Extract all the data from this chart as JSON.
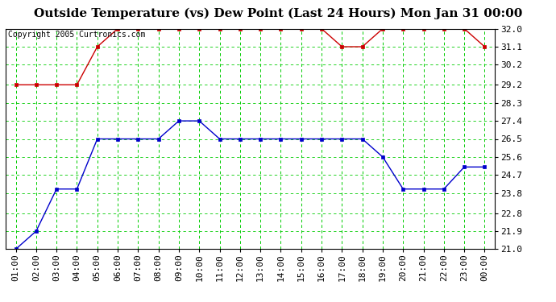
{
  "title": "Outside Temperature (vs) Dew Point (Last 24 Hours) Mon Jan 31 00:00",
  "copyright": "Copyright 2005 Curtronics.com",
  "x_labels": [
    "01:00",
    "02:00",
    "03:00",
    "04:00",
    "05:00",
    "06:00",
    "07:00",
    "08:00",
    "09:00",
    "10:00",
    "11:00",
    "12:00",
    "13:00",
    "14:00",
    "15:00",
    "16:00",
    "17:00",
    "18:00",
    "19:00",
    "20:00",
    "21:00",
    "22:00",
    "23:00",
    "00:00"
  ],
  "y_ticks": [
    21.0,
    21.9,
    22.8,
    23.8,
    24.7,
    25.6,
    26.5,
    27.4,
    28.3,
    29.2,
    30.2,
    31.1,
    32.0
  ],
  "ylim": [
    21.0,
    32.0
  ],
  "red_line": [
    29.2,
    29.2,
    29.2,
    29.2,
    31.1,
    32.0,
    32.0,
    32.0,
    32.0,
    32.0,
    32.0,
    32.0,
    32.0,
    32.0,
    32.0,
    32.0,
    31.1,
    31.1,
    32.0,
    32.0,
    32.0,
    32.0,
    32.0,
    31.1
  ],
  "blue_line": [
    21.0,
    21.9,
    24.0,
    24.0,
    26.5,
    26.5,
    26.5,
    26.5,
    27.4,
    27.4,
    26.5,
    26.5,
    26.5,
    26.5,
    26.5,
    26.5,
    26.5,
    26.5,
    25.6,
    24.0,
    24.0,
    24.0,
    25.1,
    25.1
  ],
  "bg_color": "#ffffff",
  "plot_bg_color": "#ffffff",
  "grid_color": "#00cc00",
  "header_bg": "#d4d4d4",
  "red_color": "#cc0000",
  "blue_color": "#0000cc",
  "title_fontsize": 11,
  "copyright_fontsize": 7,
  "tick_fontsize": 8
}
